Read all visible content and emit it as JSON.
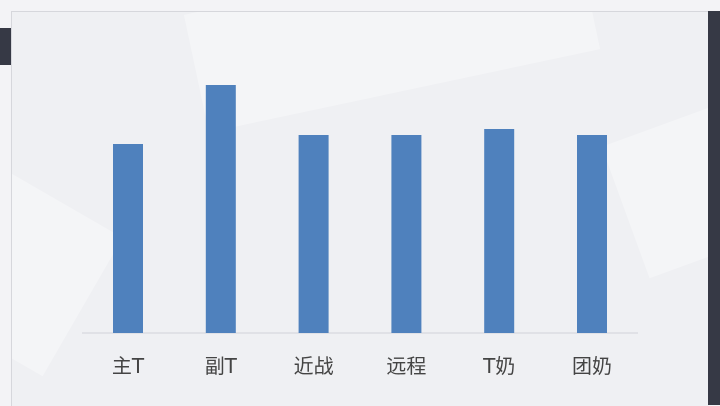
{
  "chart_data": {
    "type": "bar",
    "categories": [
      "主T",
      "副T",
      "近战",
      "远程",
      "T奶",
      "团奶"
    ],
    "values": [
      189,
      248,
      198,
      198,
      204,
      198
    ],
    "ylim": [
      0,
      248
    ],
    "title": "",
    "xlabel": "",
    "ylabel": "",
    "grid": false,
    "legend": "none",
    "bar_color": "#4f81bd",
    "axis_color": "#d0d2d8"
  }
}
